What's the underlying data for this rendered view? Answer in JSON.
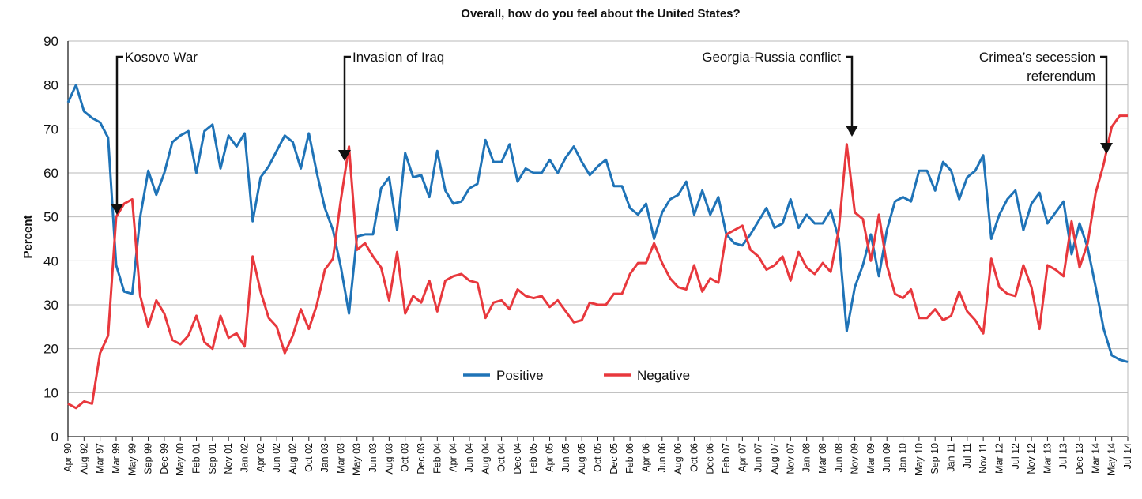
{
  "chart_data": {
    "type": "line",
    "title": "Overall, how do you feel about the United States?",
    "xlabel": "",
    "ylabel": "Percent",
    "ylim": [
      0,
      90
    ],
    "yticks": [
      0,
      10,
      20,
      30,
      40,
      50,
      60,
      70,
      80,
      90
    ],
    "grid": true,
    "legend_position": "center",
    "categories": [
      "Apr 90",
      "Aug 92",
      "Mar 97",
      "Mar 99",
      "May 99",
      "Sep 99",
      "Dec 99",
      "May 00",
      "Feb 01",
      "Sep 01",
      "Nov 01",
      "Jan 02",
      "Apr 02",
      "Jun 02",
      "Aug 02",
      "Oct 02",
      "Jan 03",
      "Mar 03",
      "May 03",
      "Jun 03",
      "Aug 03",
      "Oct 03",
      "Dec 03",
      "Feb 04",
      "Apr 04",
      "Jun 04",
      "Aug 04",
      "Oct 04",
      "Dec 04",
      "Feb 05",
      "Apr 05",
      "Jun 05",
      "Aug 05",
      "Oct 05",
      "Dec 05",
      "Feb 06",
      "Apr 06",
      "Jun 06",
      "Aug 06",
      "Oct 06",
      "Dec 06",
      "Feb 07",
      "Apr 07",
      "Jun 07",
      "Aug 07",
      "Nov 07",
      "Jan 08",
      "Mar 08",
      "Jun 08",
      "Nov 09",
      "Mar 09",
      "Jun 09",
      "Jan 10",
      "May 10",
      "Sep 10",
      "Jan 11",
      "Jul 11",
      "Nov 11",
      "Mar 12",
      "Jul 12",
      "Nov 12",
      "Mar 13",
      "Jul 13",
      "Dec 13",
      "Mar 14",
      "May 14",
      "Jul 14"
    ],
    "series": [
      {
        "name": "Positive",
        "color": "#1f73b7",
        "points": [
          [
            0.0,
            76
          ],
          [
            0.5,
            80
          ],
          [
            1,
            74
          ],
          [
            1.5,
            72.5
          ],
          [
            2,
            71.5
          ],
          [
            2.5,
            68
          ],
          [
            3,
            39
          ],
          [
            3.5,
            33
          ],
          [
            4,
            32.5
          ],
          [
            4.5,
            50
          ],
          [
            5,
            60.5
          ],
          [
            5.5,
            55
          ],
          [
            6,
            60
          ],
          [
            6.5,
            67
          ],
          [
            7,
            68.5
          ],
          [
            7.5,
            69.5
          ],
          [
            8,
            60
          ],
          [
            8.5,
            69.5
          ],
          [
            9,
            71
          ],
          [
            9.5,
            61
          ],
          [
            10,
            68.5
          ],
          [
            10.5,
            66
          ],
          [
            11,
            69
          ],
          [
            11.5,
            49
          ],
          [
            12,
            59
          ],
          [
            12.5,
            61.5
          ],
          [
            13,
            65
          ],
          [
            13.5,
            68.5
          ],
          [
            14,
            67
          ],
          [
            14.5,
            61
          ],
          [
            15,
            69
          ],
          [
            15.5,
            60
          ],
          [
            16,
            52
          ],
          [
            16.5,
            47
          ],
          [
            17,
            38.5
          ],
          [
            17.5,
            28
          ],
          [
            18,
            45.5
          ],
          [
            18.5,
            46
          ],
          [
            19,
            46
          ],
          [
            19.5,
            56.5
          ],
          [
            20,
            59
          ],
          [
            20.5,
            47
          ],
          [
            21,
            64.5
          ],
          [
            21.5,
            59
          ],
          [
            22,
            59.5
          ],
          [
            22.5,
            54.5
          ],
          [
            23,
            65
          ],
          [
            23.5,
            56
          ],
          [
            24,
            53
          ],
          [
            24.5,
            53.5
          ],
          [
            25,
            56.5
          ],
          [
            25.5,
            57.5
          ],
          [
            26,
            67.5
          ],
          [
            26.5,
            62.5
          ],
          [
            27,
            62.5
          ],
          [
            27.5,
            66.5
          ],
          [
            28,
            58
          ],
          [
            28.5,
            61
          ],
          [
            29,
            60
          ],
          [
            29.5,
            60
          ],
          [
            30,
            63
          ],
          [
            30.5,
            60
          ],
          [
            31,
            63.5
          ],
          [
            31.5,
            66
          ],
          [
            32,
            62.5
          ],
          [
            32.5,
            59.5
          ],
          [
            33,
            61.5
          ],
          [
            33.5,
            63
          ],
          [
            34,
            57
          ],
          [
            34.5,
            57
          ],
          [
            35,
            52
          ],
          [
            35.5,
            50.5
          ],
          [
            36,
            53
          ],
          [
            36.5,
            45
          ],
          [
            37,
            51
          ],
          [
            37.5,
            54
          ],
          [
            38,
            55
          ],
          [
            38.5,
            58
          ],
          [
            39,
            50.5
          ],
          [
            39.5,
            56
          ],
          [
            40,
            50.5
          ],
          [
            40.5,
            54.5
          ],
          [
            41,
            46
          ],
          [
            41.5,
            44
          ],
          [
            42,
            43.5
          ],
          [
            42.5,
            46
          ],
          [
            43,
            49
          ],
          [
            43.5,
            52
          ],
          [
            44,
            47.5
          ],
          [
            44.5,
            48.5
          ],
          [
            45,
            54
          ],
          [
            45.5,
            47.5
          ],
          [
            46,
            50.5
          ],
          [
            46.5,
            48.5
          ],
          [
            47,
            48.5
          ],
          [
            47.5,
            51.5
          ],
          [
            48,
            45
          ],
          [
            48.5,
            24
          ],
          [
            49,
            34
          ],
          [
            49.5,
            39
          ],
          [
            50,
            46
          ],
          [
            50.5,
            36.5
          ],
          [
            51,
            47
          ],
          [
            51.5,
            53.5
          ],
          [
            52,
            54.5
          ],
          [
            52.5,
            53.5
          ],
          [
            53,
            60.5
          ],
          [
            53.5,
            60.5
          ],
          [
            54,
            56
          ],
          [
            54.5,
            62.5
          ],
          [
            55,
            60.5
          ],
          [
            55.5,
            54
          ],
          [
            56,
            59
          ],
          [
            56.5,
            60.5
          ],
          [
            57,
            64
          ],
          [
            57.5,
            45
          ],
          [
            58,
            50.5
          ],
          [
            58.5,
            54
          ],
          [
            59,
            56
          ],
          [
            59.5,
            47
          ],
          [
            60,
            53
          ],
          [
            60.5,
            55.5
          ],
          [
            61,
            48.5
          ],
          [
            61.5,
            51
          ],
          [
            62,
            53.5
          ],
          [
            62.5,
            41.5
          ],
          [
            63,
            48.5
          ],
          [
            63.5,
            43
          ],
          [
            64,
            34
          ],
          [
            64.5,
            24.5
          ],
          [
            65,
            18.5
          ],
          [
            65.5,
            17.5
          ],
          [
            66,
            17
          ]
        ]
      },
      {
        "name": "Negative",
        "color": "#e8383d",
        "points": [
          [
            0.0,
            7.5
          ],
          [
            0.5,
            6.5
          ],
          [
            1,
            8
          ],
          [
            1.5,
            7.5
          ],
          [
            2,
            19
          ],
          [
            2.5,
            23
          ],
          [
            3,
            50
          ],
          [
            3.5,
            53
          ],
          [
            4,
            54
          ],
          [
            4.5,
            32
          ],
          [
            5,
            25
          ],
          [
            5.5,
            31
          ],
          [
            6,
            28
          ],
          [
            6.5,
            22
          ],
          [
            7,
            21
          ],
          [
            7.5,
            23
          ],
          [
            8,
            27.5
          ],
          [
            8.5,
            21.5
          ],
          [
            9,
            20
          ],
          [
            9.5,
            27.5
          ],
          [
            10,
            22.5
          ],
          [
            10.5,
            23.5
          ],
          [
            11,
            20.5
          ],
          [
            11.5,
            41
          ],
          [
            12,
            33
          ],
          [
            12.5,
            27
          ],
          [
            13,
            25
          ],
          [
            13.5,
            19
          ],
          [
            14,
            23
          ],
          [
            14.5,
            29
          ],
          [
            15,
            24.5
          ],
          [
            15.5,
            30
          ],
          [
            16,
            38
          ],
          [
            16.5,
            40.5
          ],
          [
            17,
            54
          ],
          [
            17.5,
            66
          ],
          [
            18,
            42.5
          ],
          [
            18.5,
            44
          ],
          [
            19,
            41
          ],
          [
            19.5,
            38.5
          ],
          [
            20,
            31
          ],
          [
            20.5,
            42
          ],
          [
            21,
            28
          ],
          [
            21.5,
            32
          ],
          [
            22,
            30.5
          ],
          [
            22.5,
            35.5
          ],
          [
            23,
            28.5
          ],
          [
            23.5,
            35.5
          ],
          [
            24,
            36.5
          ],
          [
            24.5,
            37
          ],
          [
            25,
            35.5
          ],
          [
            25.5,
            35
          ],
          [
            26,
            27
          ],
          [
            26.5,
            30.5
          ],
          [
            27,
            31
          ],
          [
            27.5,
            29
          ],
          [
            28,
            33.5
          ],
          [
            28.5,
            32
          ],
          [
            29,
            31.5
          ],
          [
            29.5,
            32
          ],
          [
            30,
            29.5
          ],
          [
            30.5,
            31
          ],
          [
            31,
            28.5
          ],
          [
            31.5,
            26
          ],
          [
            32,
            26.5
          ],
          [
            32.5,
            30.5
          ],
          [
            33,
            30
          ],
          [
            33.5,
            30
          ],
          [
            34,
            32.5
          ],
          [
            34.5,
            32.5
          ],
          [
            35,
            37
          ],
          [
            35.5,
            39.5
          ],
          [
            36,
            39.5
          ],
          [
            36.5,
            44
          ],
          [
            37,
            39.5
          ],
          [
            37.5,
            36
          ],
          [
            38,
            34
          ],
          [
            38.5,
            33.5
          ],
          [
            39,
            39
          ],
          [
            39.5,
            33
          ],
          [
            40,
            36
          ],
          [
            40.5,
            35
          ],
          [
            41,
            46
          ],
          [
            41.5,
            47
          ],
          [
            42,
            48
          ],
          [
            42.5,
            42.5
          ],
          [
            43,
            41
          ],
          [
            43.5,
            38
          ],
          [
            44,
            39
          ],
          [
            44.5,
            41
          ],
          [
            45,
            35.5
          ],
          [
            45.5,
            42
          ],
          [
            46,
            38.5
          ],
          [
            46.5,
            37
          ],
          [
            47,
            39.5
          ],
          [
            47.5,
            37.5
          ],
          [
            48,
            47
          ],
          [
            48.5,
            66.5
          ],
          [
            49,
            51
          ],
          [
            49.5,
            49.5
          ],
          [
            50,
            40
          ],
          [
            50.5,
            50.5
          ],
          [
            51,
            39
          ],
          [
            51.5,
            32.5
          ],
          [
            52,
            31.5
          ],
          [
            52.5,
            33.5
          ],
          [
            53,
            27
          ],
          [
            53.5,
            27
          ],
          [
            54,
            29
          ],
          [
            54.5,
            26.5
          ],
          [
            55,
            27.5
          ],
          [
            55.5,
            33
          ],
          [
            56,
            28.5
          ],
          [
            56.5,
            26.5
          ],
          [
            57,
            23.5
          ],
          [
            57.5,
            40.5
          ],
          [
            58,
            34
          ],
          [
            58.5,
            32.5
          ],
          [
            59,
            32
          ],
          [
            59.5,
            39
          ],
          [
            60,
            34
          ],
          [
            60.5,
            24.5
          ],
          [
            61,
            39
          ],
          [
            61.5,
            38
          ],
          [
            62,
            36.5
          ],
          [
            62.5,
            49
          ],
          [
            63,
            38.5
          ],
          [
            63.5,
            44
          ],
          [
            64,
            55.5
          ],
          [
            64.5,
            62
          ],
          [
            65,
            70.5
          ],
          [
            65.5,
            73
          ],
          [
            66,
            73
          ]
        ]
      }
    ],
    "annotations": [
      {
        "id": "kosovo",
        "lines": [
          "Kosovo War"
        ],
        "x_index": 3
      },
      {
        "id": "iraq",
        "lines": [
          "Invasion of Iraq"
        ],
        "x_index": 17
      },
      {
        "id": "georgia",
        "lines": [
          "Georgia-Russia conflict"
        ],
        "x_index": 48.5
      },
      {
        "id": "crimea",
        "lines": [
          "Crimea’s secession",
          "referendum"
        ],
        "x_index": 64
      }
    ]
  }
}
